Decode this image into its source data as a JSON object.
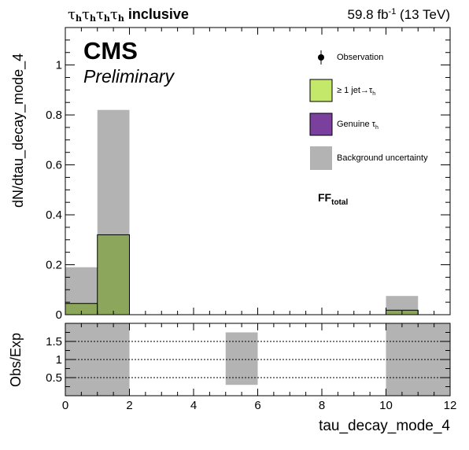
{
  "header": {
    "channel_label": "inclusive",
    "lumi": "59.8 fb",
    "lumi_exp": "-1",
    "energy": "(13 TeV)"
  },
  "experiment": "CMS",
  "status": "Preliminary",
  "ff_label": {
    "main": "FF",
    "sub": "total"
  },
  "legend": {
    "observation": "Observation",
    "jet_fake": "≥ 1 jet→τ",
    "genuine": "Genuine τ",
    "uncertainty": "Background uncertainty"
  },
  "colors": {
    "jet_fake": "#c3e86a",
    "genuine": "#7b3f9d",
    "uncertainty": "#b3b3b3",
    "overlap": "#8ca65c"
  },
  "chart_data": [
    {
      "type": "bar",
      "panel": "main",
      "xlabel": "tau_decay_mode_4",
      "ylabel": "dN/dtau_decay_mode_4",
      "xlim": [
        0,
        12
      ],
      "ylim": [
        0,
        1.15
      ],
      "xticks": [
        0,
        2,
        4,
        6,
        8,
        10,
        12
      ],
      "yticks": [
        0,
        0.2,
        0.4,
        0.6,
        0.8,
        1
      ],
      "bin_edges": [
        0,
        1,
        2,
        3,
        4,
        5,
        6,
        7,
        8,
        9,
        10,
        11,
        12
      ],
      "series": [
        {
          "name": "≥ 1 jet→τ_h",
          "values": [
            0.045,
            0.32,
            0,
            0,
            0,
            0,
            0,
            0,
            0,
            0,
            0.018,
            0
          ]
        },
        {
          "name": "Background uncertainty",
          "type": "band",
          "low": [
            0.0,
            0.0,
            0,
            0,
            0,
            0,
            0,
            0,
            0,
            0,
            0.0,
            0
          ],
          "high": [
            0.19,
            0.82,
            0,
            0,
            0,
            0,
            0,
            0,
            0,
            0,
            0.075,
            0
          ]
        }
      ]
    },
    {
      "type": "bar",
      "panel": "ratio",
      "ylabel": "Obs/Exp",
      "xlim": [
        0,
        12
      ],
      "ylim": [
        0,
        2
      ],
      "yticks": [
        0.5,
        1,
        1.5
      ],
      "reference_lines": [
        0.5,
        1,
        1.5
      ],
      "bands": [
        {
          "x0": 0,
          "x1": 2,
          "low": 0,
          "high": 2
        },
        {
          "x0": 5,
          "x1": 6,
          "low": 0.3,
          "high": 1.75
        },
        {
          "x0": 10,
          "x1": 12,
          "low": 0,
          "high": 2
        }
      ]
    }
  ]
}
